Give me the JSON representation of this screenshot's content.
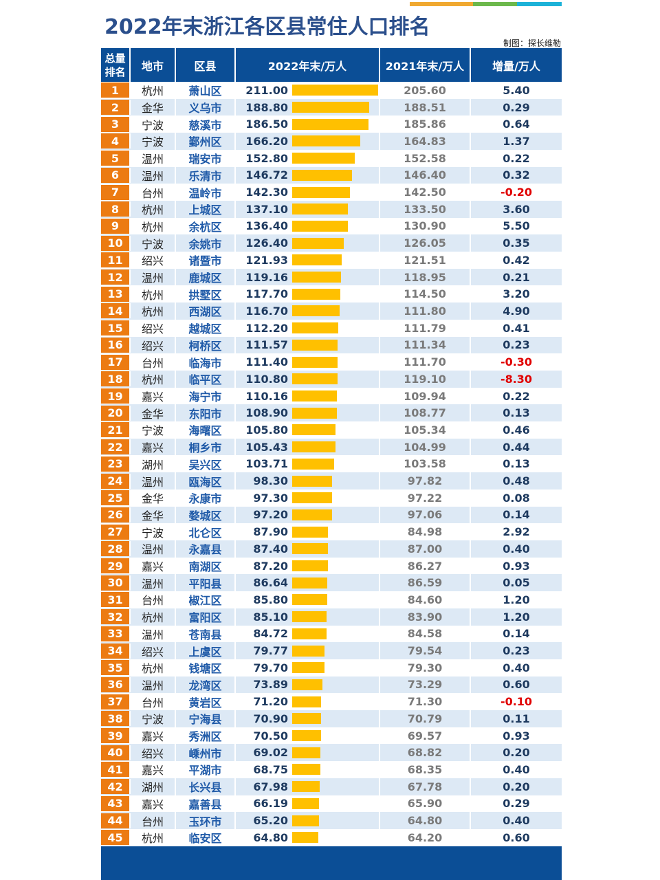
{
  "title": "2022年末浙江各区县常住人口排名",
  "credit": "制图：探长维勒",
  "colors": {
    "header": "#0b4e96",
    "rank": "#ec7b12",
    "bar": "#ffc000",
    "negative": "#e00000",
    "topbar": [
      "#f0a830",
      "#6cb84b",
      "#1cb2d8"
    ]
  },
  "headers": {
    "rank": "总量排名",
    "city": "地市",
    "district": "区县",
    "y2022": "2022年末/万人",
    "y2021": "2021年末/万人",
    "delta": "增量/万人"
  },
  "chart_data": {
    "type": "table",
    "bar_column": "y2022",
    "rows": [
      [
        1,
        "杭州",
        "萧山区",
        "211.00",
        "205.60",
        "5.40"
      ],
      [
        2,
        "金华",
        "义乌市",
        "188.80",
        "188.51",
        "0.29"
      ],
      [
        3,
        "宁波",
        "慈溪市",
        "186.50",
        "185.86",
        "0.64"
      ],
      [
        4,
        "宁波",
        "鄞州区",
        "166.20",
        "164.83",
        "1.37"
      ],
      [
        5,
        "温州",
        "瑞安市",
        "152.80",
        "152.58",
        "0.22"
      ],
      [
        6,
        "温州",
        "乐清市",
        "146.72",
        "146.40",
        "0.32"
      ],
      [
        7,
        "台州",
        "温岭市",
        "142.30",
        "142.50",
        "-0.20"
      ],
      [
        8,
        "杭州",
        "上城区",
        "137.10",
        "133.50",
        "3.60"
      ],
      [
        9,
        "杭州",
        "余杭区",
        "136.40",
        "130.90",
        "5.50"
      ],
      [
        10,
        "宁波",
        "余姚市",
        "126.40",
        "126.05",
        "0.35"
      ],
      [
        11,
        "绍兴",
        "诸暨市",
        "121.93",
        "121.51",
        "0.42"
      ],
      [
        12,
        "温州",
        "鹿城区",
        "119.16",
        "118.95",
        "0.21"
      ],
      [
        13,
        "杭州",
        "拱墅区",
        "117.70",
        "114.50",
        "3.20"
      ],
      [
        14,
        "杭州",
        "西湖区",
        "116.70",
        "111.80",
        "4.90"
      ],
      [
        15,
        "绍兴",
        "越城区",
        "112.20",
        "111.79",
        "0.41"
      ],
      [
        16,
        "绍兴",
        "柯桥区",
        "111.57",
        "111.34",
        "0.23"
      ],
      [
        17,
        "台州",
        "临海市",
        "111.40",
        "111.70",
        "-0.30"
      ],
      [
        18,
        "杭州",
        "临平区",
        "110.80",
        "119.10",
        "-8.30"
      ],
      [
        19,
        "嘉兴",
        "海宁市",
        "110.16",
        "109.94",
        "0.22"
      ],
      [
        20,
        "金华",
        "东阳市",
        "108.90",
        "108.77",
        "0.13"
      ],
      [
        21,
        "宁波",
        "海曙区",
        "105.80",
        "105.34",
        "0.46"
      ],
      [
        22,
        "嘉兴",
        "桐乡市",
        "105.43",
        "104.99",
        "0.44"
      ],
      [
        23,
        "湖州",
        "吴兴区",
        "103.71",
        "103.58",
        "0.13"
      ],
      [
        24,
        "温州",
        "瓯海区",
        "98.30",
        "97.82",
        "0.48"
      ],
      [
        25,
        "金华",
        "永康市",
        "97.30",
        "97.22",
        "0.08"
      ],
      [
        26,
        "金华",
        "婺城区",
        "97.20",
        "97.06",
        "0.14"
      ],
      [
        27,
        "宁波",
        "北仑区",
        "87.90",
        "84.98",
        "2.92"
      ],
      [
        28,
        "温州",
        "永嘉县",
        "87.40",
        "87.00",
        "0.40"
      ],
      [
        29,
        "嘉兴",
        "南湖区",
        "87.20",
        "86.27",
        "0.93"
      ],
      [
        30,
        "温州",
        "平阳县",
        "86.64",
        "86.59",
        "0.05"
      ],
      [
        31,
        "台州",
        "椒江区",
        "85.80",
        "84.60",
        "1.20"
      ],
      [
        32,
        "杭州",
        "富阳区",
        "85.10",
        "83.90",
        "1.20"
      ],
      [
        33,
        "温州",
        "苍南县",
        "84.72",
        "84.58",
        "0.14"
      ],
      [
        34,
        "绍兴",
        "上虞区",
        "79.77",
        "79.54",
        "0.23"
      ],
      [
        35,
        "杭州",
        "钱塘区",
        "79.70",
        "79.30",
        "0.40"
      ],
      [
        36,
        "温州",
        "龙湾区",
        "73.89",
        "73.29",
        "0.60"
      ],
      [
        37,
        "台州",
        "黄岩区",
        "71.20",
        "71.30",
        "-0.10"
      ],
      [
        38,
        "宁波",
        "宁海县",
        "70.90",
        "70.79",
        "0.11"
      ],
      [
        39,
        "嘉兴",
        "秀洲区",
        "70.50",
        "69.57",
        "0.93"
      ],
      [
        40,
        "绍兴",
        "嵊州市",
        "69.02",
        "68.82",
        "0.20"
      ],
      [
        41,
        "嘉兴",
        "平湖市",
        "68.75",
        "68.35",
        "0.40"
      ],
      [
        42,
        "湖州",
        "长兴县",
        "67.98",
        "67.78",
        "0.20"
      ],
      [
        43,
        "嘉兴",
        "嘉善县",
        "66.19",
        "65.90",
        "0.29"
      ],
      [
        44,
        "台州",
        "玉环市",
        "65.20",
        "64.80",
        "0.40"
      ],
      [
        45,
        "杭州",
        "临安区",
        "64.80",
        "64.20",
        "0.60"
      ]
    ]
  }
}
